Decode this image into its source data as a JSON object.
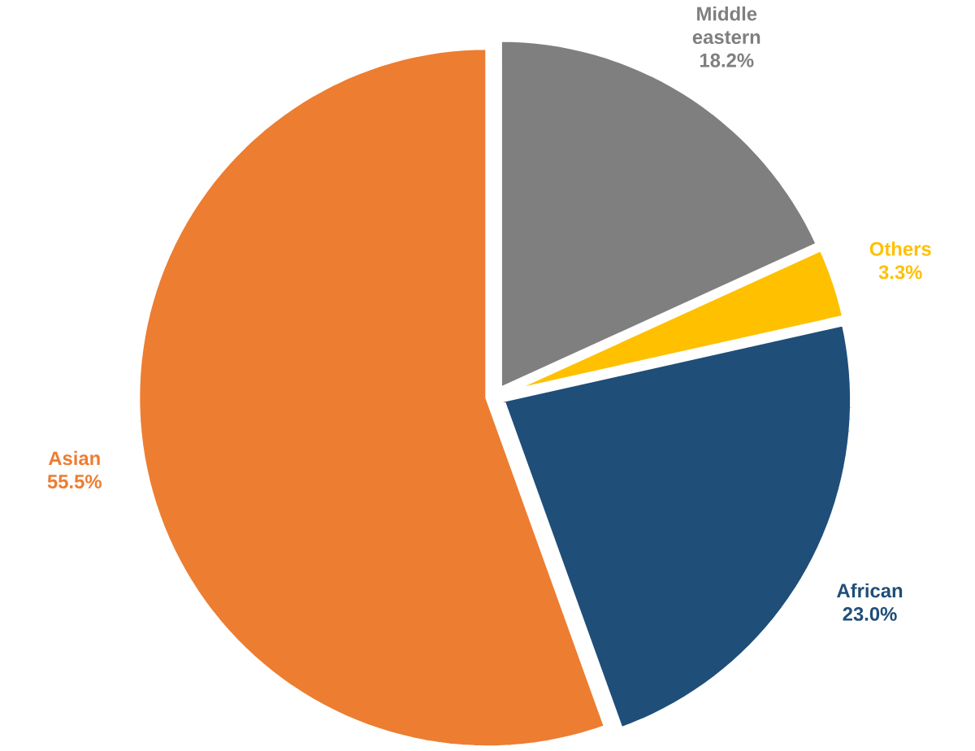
{
  "chart_data": {
    "type": "pie",
    "categories": [
      "Middle eastern",
      "Others",
      "African",
      "Asian"
    ],
    "values": [
      18.2,
      3.3,
      23.0,
      55.5
    ],
    "value_labels": [
      "18.2%",
      "3.3%",
      "23.0%",
      "55.5%"
    ],
    "colors": [
      "#7f7f7f",
      "#ffc000",
      "#1f4e79",
      "#ed7d31"
    ],
    "legend": false
  }
}
